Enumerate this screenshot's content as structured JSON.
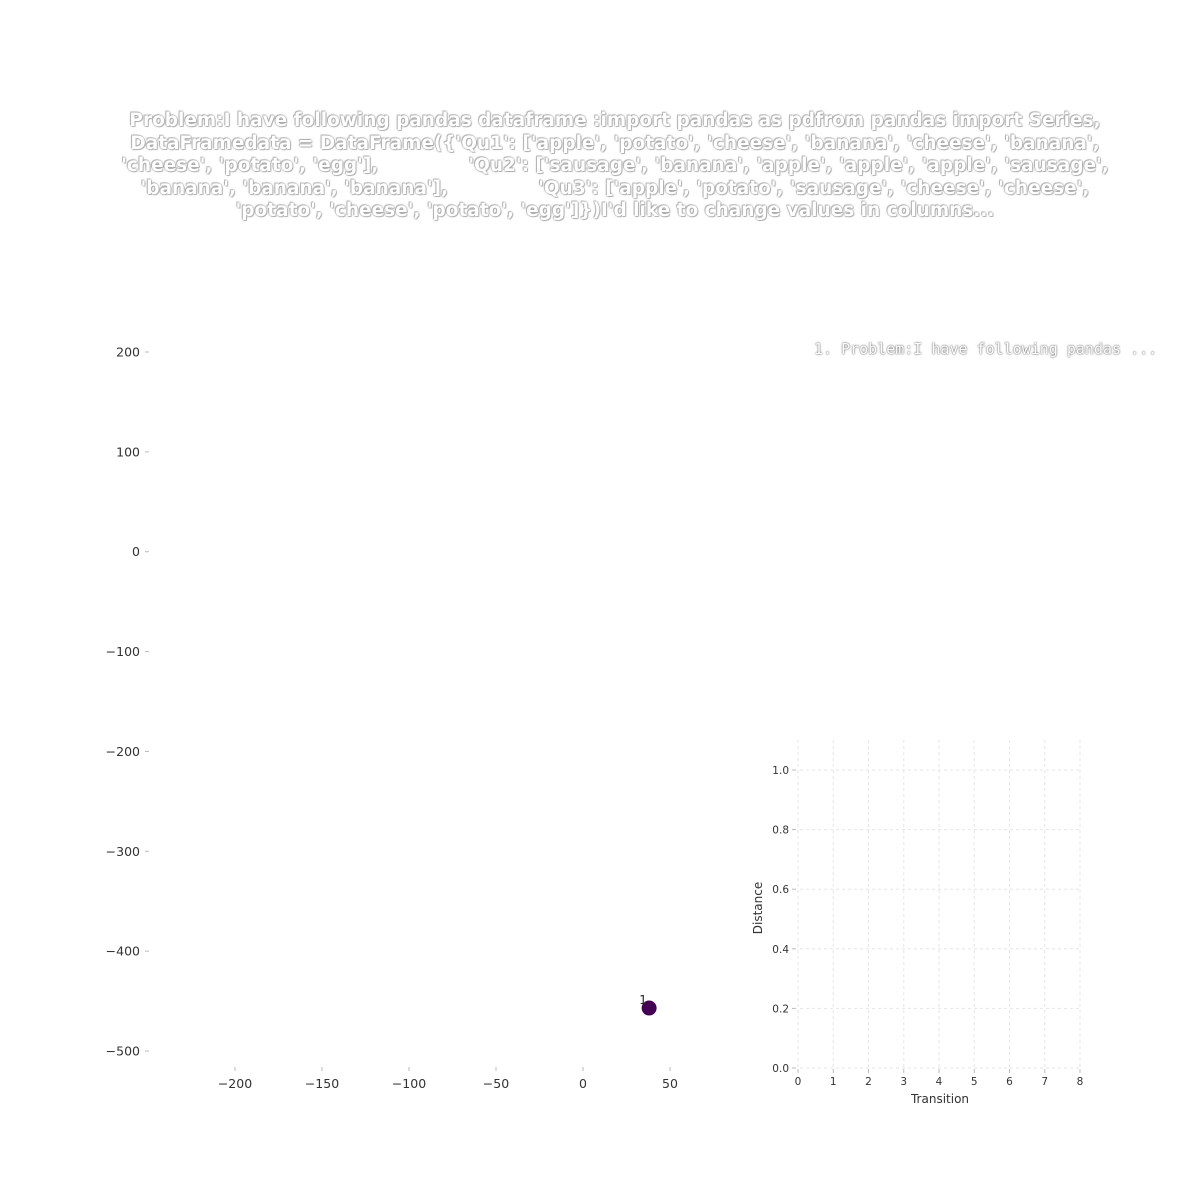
{
  "title": "Problem:I have following pandas dataframe :import pandas as pdfrom pandas import Series, DataFramedata = DataFrame({'Qu1': ['apple', 'potato', 'cheese', 'banana', 'cheese', 'banana', 'cheese', 'potato', 'egg'],              'Qu2': ['sausage', 'banana', 'apple', 'apple', 'apple', 'sausage', 'banana', 'banana', 'banana'],              'Qu3': ['apple', 'potato', 'sausage', 'cheese', 'cheese', 'potato', 'cheese', 'potato', 'egg']})I'd like to change values in columns...",
  "legend_item": "1. Problem:I have following pandas ...",
  "colors": {
    "point": "#440154",
    "axis_text": "#333333",
    "grid": "#e6e6e6"
  },
  "chart_data": [
    {
      "type": "scatter",
      "xlim": [
        -250,
        80
      ],
      "ylim": [
        -520,
        215
      ],
      "x_ticks": [
        -200,
        -150,
        -100,
        -50,
        0,
        50
      ],
      "x_tick_labels": [
        "−200",
        "−150",
        "−100",
        "−50",
        "0",
        "50"
      ],
      "y_ticks": [
        200,
        100,
        0,
        -100,
        -200,
        -300,
        -400,
        -500
      ],
      "y_tick_labels": [
        "200",
        "100",
        "0",
        "−100",
        "−200",
        "−300",
        "−400",
        "−500"
      ],
      "grid": false,
      "points": [
        {
          "x": 38,
          "y": -457,
          "label": "1"
        }
      ]
    },
    {
      "type": "line",
      "xlabel": "Transition",
      "ylabel": "Distance",
      "xlim": [
        0,
        8
      ],
      "ylim": [
        0,
        1
      ],
      "x_ticks": [
        0,
        1,
        2,
        3,
        4,
        5,
        6,
        7,
        8
      ],
      "x_tick_labels": [
        "0",
        "1",
        "2",
        "3",
        "4",
        "5",
        "6",
        "7",
        "8"
      ],
      "y_ticks": [
        0,
        0.2,
        0.4,
        0.6,
        0.8,
        1.0
      ],
      "y_tick_labels": [
        "0.0",
        "0.2",
        "0.4",
        "0.6",
        "0.8",
        "1.0"
      ],
      "grid": true,
      "series": []
    }
  ]
}
